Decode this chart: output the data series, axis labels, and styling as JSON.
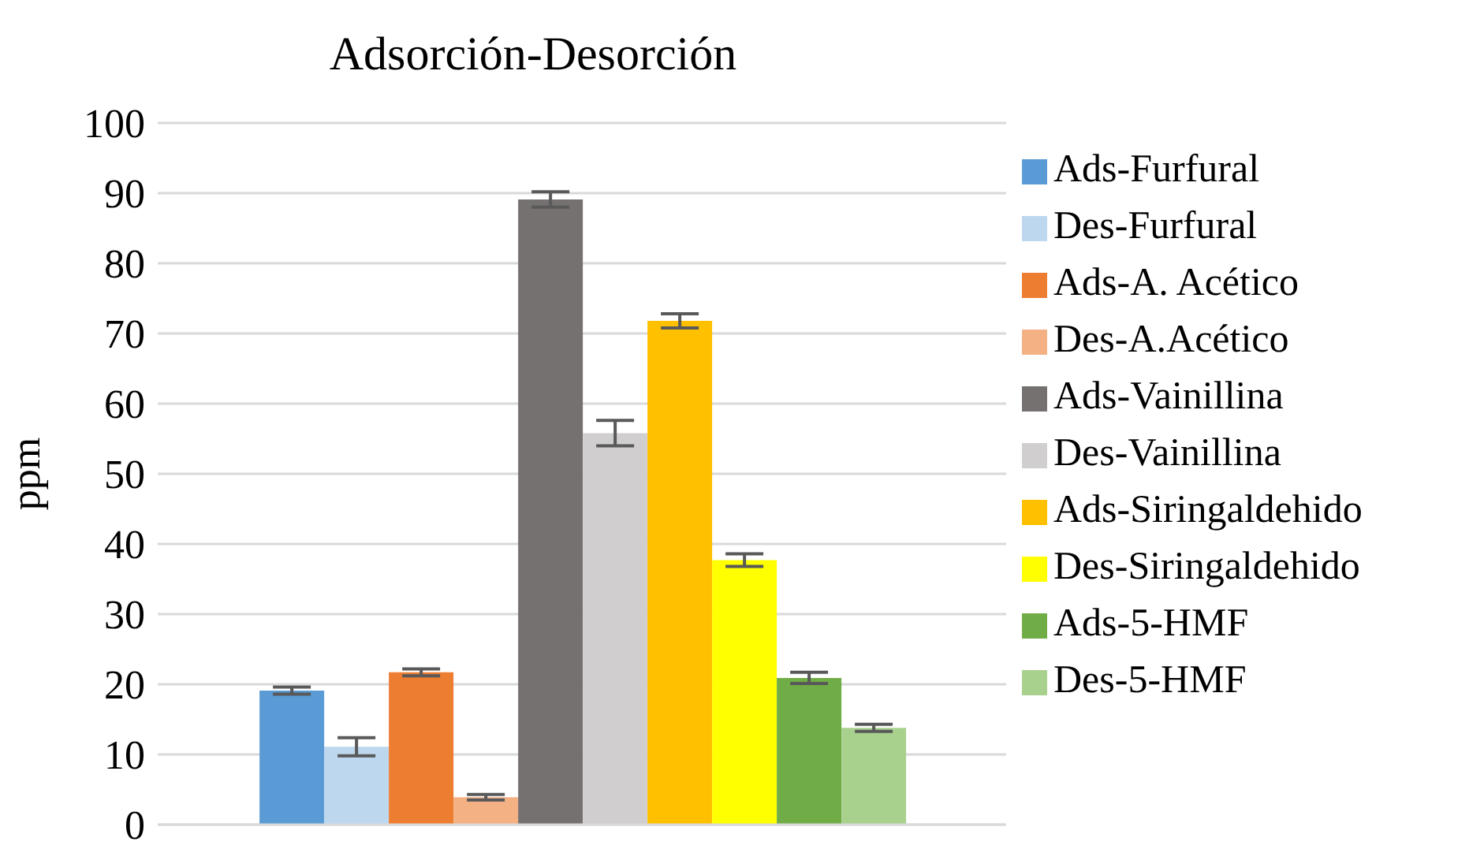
{
  "chart_data": {
    "type": "bar",
    "title": "Adsorción-Desorción",
    "ylabel": "ppm",
    "categories": [
      null
    ],
    "series": [
      {
        "name": "Ads-Furfural",
        "color": "#5b9bd5",
        "values": [
          19.1
        ],
        "errors": [
          0.5
        ]
      },
      {
        "name": "Des-Furfural",
        "color": "#bdd7ee",
        "values": [
          11.1
        ],
        "errors": [
          1.3
        ]
      },
      {
        "name": "Ads-A. Acético",
        "color": "#ed7d31",
        "values": [
          21.7
        ],
        "errors": [
          0.5
        ]
      },
      {
        "name": "Des-A.Acético",
        "color": "#f4b183",
        "values": [
          3.9
        ],
        "errors": [
          0.4
        ]
      },
      {
        "name": "Ads-Vainillina",
        "color": "#767171",
        "values": [
          89.1
        ],
        "errors": [
          1.1
        ]
      },
      {
        "name": "Des-Vainillina",
        "color": "#d0cece",
        "values": [
          55.8
        ],
        "errors": [
          1.8
        ]
      },
      {
        "name": "Ads-Siringaldehido",
        "color": "#ffc000",
        "values": [
          71.8
        ],
        "errors": [
          1.0
        ]
      },
      {
        "name": "Des-Siringaldehido",
        "color": "#ffff00",
        "values": [
          37.7
        ],
        "errors": [
          0.9
        ]
      },
      {
        "name": "Ads-5-HMF",
        "color": "#70ad47",
        "values": [
          20.9
        ],
        "errors": [
          0.8
        ]
      },
      {
        "name": "Des-5-HMF",
        "color": "#a9d18e",
        "values": [
          13.8
        ],
        "errors": [
          0.5
        ]
      }
    ],
    "ylim": [
      0,
      100
    ],
    "yticks": [
      0,
      10,
      20,
      30,
      40,
      50,
      60,
      70,
      80,
      90,
      100
    ],
    "grid": "y",
    "legend": "right"
  }
}
